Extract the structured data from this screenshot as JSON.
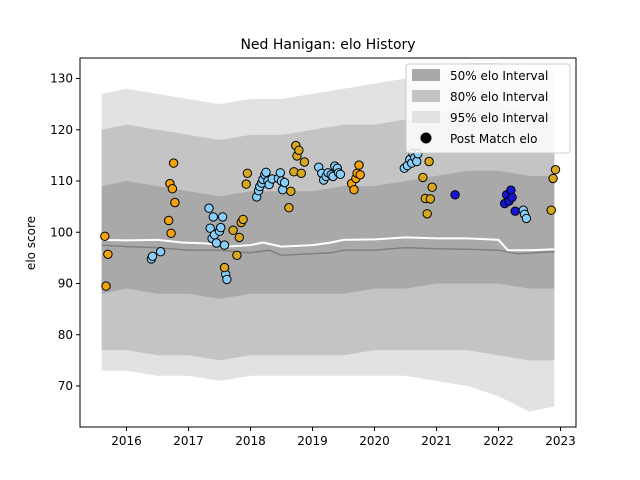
{
  "chart_data": {
    "type": "scatter",
    "title": "Ned Hanigan: elo History",
    "xlabel": "",
    "ylabel": "elo score",
    "xlim": [
      2015.25,
      2023.25
    ],
    "ylim": [
      62,
      134
    ],
    "xticks": [
      2016,
      2017,
      2018,
      2019,
      2020,
      2021,
      2022,
      2023
    ],
    "yticks": [
      70,
      80,
      90,
      100,
      110,
      120,
      130
    ],
    "grid": false,
    "legend_position": "top-right",
    "legend": [
      {
        "label": "50% elo Interval",
        "kind": "band",
        "color": "#a9a9a9"
      },
      {
        "label": "80% elo Interval",
        "kind": "band",
        "color": "#c4c4c4"
      },
      {
        "label": "95% elo Interval",
        "kind": "band",
        "color": "#e2e2e2"
      },
      {
        "label": "Post Match elo",
        "kind": "marker",
        "color": "#000000"
      }
    ],
    "bands": {
      "x": [
        2015.6,
        2016.0,
        2016.5,
        2017.0,
        2017.5,
        2018.0,
        2018.5,
        2019.0,
        2019.5,
        2020.0,
        2020.5,
        2021.0,
        2021.5,
        2022.0,
        2022.5,
        2022.9
      ],
      "p95_upper": [
        127,
        128,
        127,
        126,
        125,
        126,
        126,
        127,
        128,
        129,
        130,
        131,
        133,
        133,
        131,
        131
      ],
      "p80_upper": [
        120,
        121,
        120,
        119,
        118,
        119,
        119,
        120,
        121,
        121,
        122,
        123,
        125,
        125,
        123,
        123
      ],
      "p50_upper": [
        109,
        110,
        109,
        108,
        107,
        108,
        108,
        108,
        109,
        109,
        110,
        111,
        112,
        112,
        111,
        111
      ],
      "p50_lower": [
        88,
        89,
        88,
        88,
        87,
        88,
        88,
        88,
        88,
        89,
        89,
        90,
        90,
        90,
        89,
        89
      ],
      "p80_lower": [
        77,
        77,
        76,
        76,
        75,
        76,
        76,
        76,
        76,
        77,
        77,
        77,
        77,
        76,
        75,
        75
      ],
      "p95_lower": [
        73,
        73,
        72,
        72,
        71,
        72,
        72,
        72,
        72,
        72,
        72,
        71,
        70,
        68,
        65,
        66
      ]
    },
    "mean_line": {
      "x": [
        2015.6,
        2016.0,
        2016.5,
        2017.0,
        2017.5,
        2018.0,
        2018.3,
        2018.5,
        2019.0,
        2019.3,
        2019.5,
        2020.0,
        2020.5,
        2021.0,
        2021.5,
        2022.0,
        2022.3,
        2022.9
      ],
      "y": [
        97.5,
        97.2,
        97.0,
        96.5,
        96.5,
        96.0,
        96.5,
        95.5,
        95.8,
        96.0,
        96.5,
        96.5,
        97.0,
        96.8,
        96.7,
        96.5,
        95.8,
        96.2
      ]
    },
    "median_line": {
      "x": [
        2015.6,
        2016.0,
        2016.5,
        2016.9,
        2017.3,
        2017.6,
        2018.0,
        2018.2,
        2018.5,
        2019.0,
        2019.3,
        2019.5,
        2020.0,
        2020.5,
        2021.0,
        2021.5,
        2022.0,
        2022.15,
        2022.5,
        2022.9
      ],
      "y": [
        98.5,
        98.4,
        98.5,
        98.0,
        97.8,
        97.2,
        97.5,
        98.0,
        97.2,
        97.5,
        98.0,
        98.5,
        98.6,
        99.0,
        98.8,
        98.8,
        98.5,
        96.5,
        96.5,
        96.7
      ]
    },
    "series": [
      {
        "color": "#f5a20f",
        "x": [
          2015.65,
          2015.67,
          2015.7,
          2016.68,
          2016.7,
          2016.72,
          2016.74,
          2016.76,
          2016.78
        ],
        "y": [
          99.2,
          89.5,
          95.7,
          102.3,
          109.5,
          99.8,
          108.5,
          113.5,
          105.8
        ]
      },
      {
        "color": "#87cefa",
        "x": [
          2016.4,
          2016.42,
          2016.55,
          2017.33,
          2017.35,
          2017.38,
          2017.4,
          2017.42,
          2017.45,
          2017.5,
          2017.52,
          2017.55,
          2017.58,
          2017.6,
          2017.62
        ],
        "y": [
          94.8,
          95.3,
          96.2,
          104.7,
          100.8,
          98.8,
          103.0,
          99.5,
          97.9,
          100.2,
          100.9,
          103.0,
          97.5,
          91.8,
          90.8
        ]
      },
      {
        "color": "#d8a91e",
        "x": [
          2017.58,
          2017.72,
          2017.78,
          2017.82,
          2017.85,
          2017.88,
          2017.93,
          2017.95
        ],
        "y": [
          93.1,
          100.4,
          95.5,
          99.0,
          101.9,
          102.5,
          109.4,
          111.5
        ]
      },
      {
        "color": "#87cefa",
        "x": [
          2018.1,
          2018.13,
          2018.15,
          2018.18,
          2018.2,
          2018.23,
          2018.25,
          2018.28,
          2018.3,
          2018.35,
          2018.45,
          2018.48,
          2018.5,
          2018.52,
          2018.55
        ],
        "y": [
          106.9,
          108.1,
          108.9,
          109.6,
          110.3,
          111.2,
          111.7,
          110.0,
          109.3,
          110.4,
          110.5,
          111.6,
          110.0,
          108.3,
          109.7
        ]
      },
      {
        "color": "#d8a91e",
        "x": [
          2018.62,
          2018.65,
          2018.7,
          2018.73,
          2018.75,
          2018.78,
          2018.82,
          2018.87
        ],
        "y": [
          104.8,
          108.0,
          111.8,
          116.9,
          114.9,
          116.0,
          111.5,
          113.7
        ]
      },
      {
        "color": "#87cefa",
        "x": [
          2019.1,
          2019.15,
          2019.18,
          2019.22,
          2019.25,
          2019.3,
          2019.33,
          2019.36,
          2019.4,
          2019.42,
          2019.45
        ],
        "y": [
          112.7,
          111.5,
          110.2,
          110.9,
          111.6,
          111.2,
          110.9,
          112.9,
          112.5,
          111.6,
          111.3
        ]
      },
      {
        "color": "#f5a20f",
        "x": [
          2019.63,
          2019.67,
          2019.7,
          2019.72,
          2019.75,
          2019.77
        ],
        "y": [
          109.5,
          108.3,
          110.5,
          111.5,
          113.1,
          111.2
        ]
      },
      {
        "color": "#87cefa",
        "x": [
          2020.48,
          2020.53,
          2020.57,
          2020.6,
          2020.62,
          2020.65,
          2020.68,
          2020.7
        ],
        "y": [
          112.5,
          113.0,
          114.2,
          113.5,
          115.4,
          114.6,
          113.8,
          115.3
        ]
      },
      {
        "color": "#d8a91e",
        "x": [
          2020.78,
          2020.82,
          2020.85,
          2020.88,
          2020.9,
          2020.93
        ],
        "y": [
          110.7,
          106.6,
          103.6,
          113.8,
          106.5,
          108.8
        ]
      },
      {
        "color": "#1515d4",
        "x": [
          2021.3,
          2022.1,
          2022.13,
          2022.17,
          2022.2,
          2022.22,
          2022.27
        ],
        "y": [
          107.3,
          105.6,
          107.3,
          106.1,
          108.2,
          106.8,
          104.1
        ]
      },
      {
        "color": "#87cefa",
        "x": [
          2022.4,
          2022.42,
          2022.45
        ],
        "y": [
          104.3,
          103.5,
          102.7
        ]
      },
      {
        "color": "#d8a91e",
        "x": [
          2022.85,
          2022.88,
          2022.92
        ],
        "y": [
          104.3,
          110.5,
          112.2
        ]
      }
    ]
  }
}
